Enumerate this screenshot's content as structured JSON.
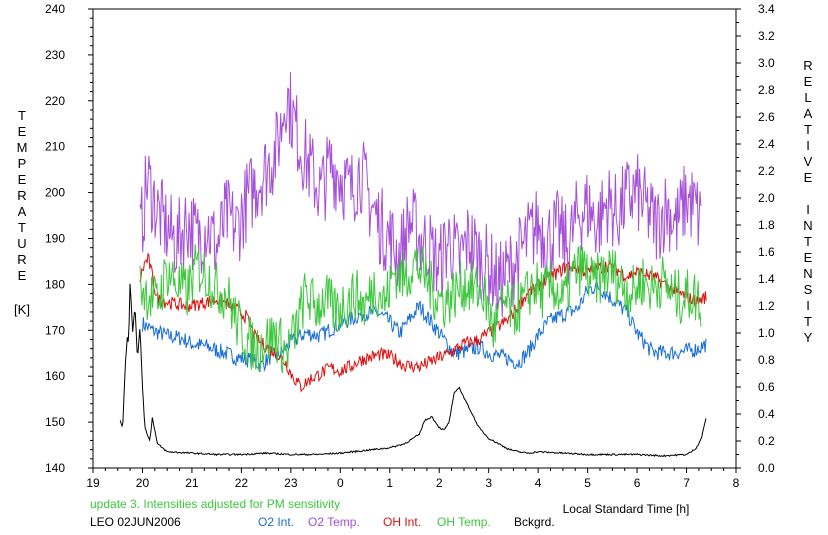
{
  "chart_data": {
    "type": "line",
    "xlabel": "Local Standard Time [h]",
    "ylabel_left_letters": [
      "T",
      "E",
      "M",
      "P",
      "E",
      "R",
      "A",
      "T",
      "U",
      "R",
      "E"
    ],
    "ylabel_left_unit": "[K]",
    "ylabel_right_letters": [
      "R",
      "E",
      "L",
      "A",
      "T",
      "I",
      "V",
      "E",
      "",
      "I",
      "N",
      "T",
      "E",
      "N",
      "S",
      "I",
      "T",
      "Y"
    ],
    "x_ticks": [
      "19",
      "20",
      "21",
      "22",
      "23",
      "0",
      "1",
      "2",
      "3",
      "4",
      "5",
      "6",
      "7",
      "8"
    ],
    "y_left_ticks": [
      "140",
      "150",
      "160",
      "170",
      "180",
      "190",
      "200",
      "210",
      "220",
      "230",
      "240"
    ],
    "y_right_ticks": [
      "0.0",
      "0.2",
      "0.4",
      "0.6",
      "0.8",
      "1.0",
      "1.2",
      "1.4",
      "1.6",
      "1.8",
      "2.0",
      "2.2",
      "2.4",
      "2.6",
      "2.8",
      "3.0",
      "3.2",
      "3.4"
    ],
    "xlim": [
      19,
      32
    ],
    "ylim_left": [
      140,
      240
    ],
    "ylim_right": [
      0,
      3.4
    ],
    "grid": false,
    "note": "update 3. Intensities adjusted for PM sensitivity",
    "station": "LEO 02JUN2006",
    "series": [
      {
        "name": "O2 Int.",
        "color": "#1a6fd6",
        "axis": "right",
        "x": [
          20.0,
          20.2,
          20.5,
          20.8,
          21.0,
          21.3,
          21.6,
          21.9,
          22.2,
          22.4,
          22.6,
          22.8,
          23.0,
          23.3,
          23.6,
          23.9,
          24.2,
          24.5,
          24.8,
          25.0,
          25.2,
          25.4,
          25.6,
          25.8,
          26.0,
          26.3,
          26.6,
          26.8,
          27.0,
          27.3,
          27.6,
          27.8,
          28.0,
          28.2,
          28.4,
          28.6,
          28.8,
          29.0,
          29.2,
          29.5,
          29.8,
          30.0,
          30.3,
          30.6,
          30.9,
          31.2,
          31.4
        ],
        "y": [
          1.07,
          1.02,
          0.98,
          0.96,
          0.92,
          0.9,
          0.86,
          0.82,
          0.8,
          0.76,
          0.83,
          0.85,
          0.93,
          1.0,
          0.98,
          1.05,
          1.1,
          1.15,
          1.14,
          1.08,
          1.0,
          1.1,
          1.2,
          1.1,
          1.0,
          0.85,
          0.87,
          0.9,
          0.85,
          0.82,
          0.78,
          0.86,
          0.98,
          1.08,
          1.12,
          1.15,
          1.18,
          1.32,
          1.35,
          1.25,
          1.15,
          1.0,
          0.86,
          0.85,
          0.86,
          0.88,
          0.92
        ]
      },
      {
        "name": "O2 Temp.",
        "color": "#a64fd8",
        "axis": "left",
        "x": [
          19.95,
          20.1,
          20.3,
          20.5,
          20.7,
          20.9,
          21.1,
          21.3,
          21.5,
          21.7,
          21.9,
          22.1,
          22.3,
          22.5,
          22.7,
          22.8,
          22.9,
          23.0,
          23.2,
          23.4,
          23.6,
          23.8,
          24.0,
          24.2,
          24.4,
          24.6,
          24.8,
          25.0,
          25.2,
          25.4,
          25.6,
          25.8,
          26.0,
          26.2,
          26.4,
          26.6,
          26.8,
          27.0,
          27.2,
          27.4,
          27.6,
          27.8,
          28.0,
          28.2,
          28.4,
          28.6,
          28.8,
          29.0,
          29.2,
          29.4,
          29.6,
          29.8,
          30.0,
          30.2,
          30.4,
          30.6,
          30.8,
          31.0,
          31.2,
          31.3
        ],
        "y": [
          190,
          203,
          196,
          192,
          189,
          194,
          190,
          193,
          188,
          195,
          192,
          198,
          202,
          205,
          209,
          214,
          222,
          218,
          210,
          205,
          200,
          206,
          204,
          200,
          205,
          198,
          193,
          190,
          186,
          194,
          190,
          188,
          184,
          190,
          185,
          190,
          186,
          184,
          180,
          183,
          186,
          190,
          193,
          190,
          192,
          188,
          195,
          197,
          193,
          198,
          195,
          199,
          200,
          196,
          193,
          197,
          193,
          199,
          196,
          193
        ]
      },
      {
        "name": "OH Int.",
        "color": "#dd1010",
        "axis": "right",
        "x": [
          19.95,
          20.05,
          20.12,
          20.3,
          20.6,
          20.9,
          21.2,
          21.5,
          21.8,
          22.1,
          22.3,
          22.5,
          22.7,
          22.9,
          23.0,
          23.2,
          23.4,
          23.6,
          23.8,
          24.0,
          24.2,
          24.4,
          24.6,
          24.8,
          25.0,
          25.3,
          25.6,
          25.9,
          26.2,
          26.5,
          26.8,
          27.0,
          27.2,
          27.4,
          27.6,
          27.8,
          28.0,
          28.2,
          28.4,
          28.6,
          28.8,
          29.0,
          29.2,
          29.4,
          29.6,
          29.8,
          30.0,
          30.2,
          30.4,
          30.6,
          30.8,
          31.0,
          31.2,
          31.4
        ],
        "y": [
          1.4,
          1.52,
          1.55,
          1.25,
          1.22,
          1.2,
          1.22,
          1.25,
          1.2,
          1.12,
          0.95,
          0.9,
          0.85,
          0.78,
          0.7,
          0.6,
          0.66,
          0.7,
          0.74,
          0.72,
          0.75,
          0.8,
          0.82,
          0.84,
          0.83,
          0.76,
          0.75,
          0.8,
          0.85,
          0.92,
          0.95,
          1.0,
          1.05,
          1.1,
          1.2,
          1.3,
          1.35,
          1.4,
          1.45,
          1.5,
          1.48,
          1.45,
          1.48,
          1.5,
          1.47,
          1.42,
          1.45,
          1.43,
          1.4,
          1.35,
          1.3,
          1.27,
          1.23,
          1.27
        ]
      },
      {
        "name": "OH Temp.",
        "color": "#3cc83c",
        "axis": "left",
        "x": [
          19.95,
          20.1,
          20.3,
          20.5,
          20.7,
          20.9,
          21.1,
          21.3,
          21.5,
          21.7,
          21.9,
          22.1,
          22.3,
          22.5,
          22.7,
          22.9,
          23.1,
          23.3,
          23.5,
          23.7,
          23.9,
          24.1,
          24.3,
          24.5,
          24.7,
          24.9,
          25.1,
          25.3,
          25.5,
          25.7,
          25.9,
          26.1,
          26.3,
          26.5,
          26.7,
          26.9,
          27.1,
          27.3,
          27.5,
          27.7,
          27.9,
          28.1,
          28.3,
          28.5,
          28.7,
          28.9,
          29.1,
          29.3,
          29.5,
          29.7,
          29.9,
          30.1,
          30.3,
          30.5,
          30.7,
          30.9,
          31.1,
          31.3
        ],
        "y": [
          180,
          178,
          176,
          183,
          180,
          178,
          184,
          182,
          179,
          178,
          172,
          168,
          166,
          168,
          169,
          165,
          170,
          178,
          175,
          177,
          174,
          176,
          178,
          175,
          180,
          176,
          183,
          181,
          185,
          182,
          178,
          176,
          178,
          180,
          179,
          178,
          170,
          176,
          174,
          176,
          180,
          178,
          180,
          176,
          182,
          184,
          180,
          182,
          183,
          180,
          178,
          181,
          179,
          181,
          178,
          177,
          178,
          176
        ]
      },
      {
        "name": "Bckgrd.",
        "color": "#000000",
        "axis": "right",
        "x": [
          19.55,
          19.6,
          19.65,
          19.7,
          19.72,
          19.75,
          19.8,
          19.85,
          19.9,
          19.95,
          20.0,
          20.05,
          20.1,
          20.15,
          20.2,
          20.3,
          20.5,
          21.0,
          21.5,
          22.0,
          22.5,
          23.0,
          23.5,
          24.0,
          24.5,
          25.0,
          25.3,
          25.6,
          25.7,
          25.85,
          26.0,
          26.1,
          26.2,
          26.3,
          26.4,
          26.5,
          26.6,
          26.8,
          27.0,
          27.2,
          27.4,
          27.6,
          27.8,
          28.0,
          28.5,
          29.0,
          29.5,
          30.0,
          30.5,
          31.0,
          31.1,
          31.2,
          31.3,
          31.35,
          31.4
        ],
        "y": [
          0.35,
          0.3,
          0.75,
          1.0,
          0.9,
          1.4,
          1.0,
          1.2,
          0.8,
          1.05,
          0.6,
          0.3,
          0.25,
          0.2,
          0.38,
          0.18,
          0.12,
          0.11,
          0.1,
          0.1,
          0.11,
          0.1,
          0.1,
          0.11,
          0.13,
          0.15,
          0.18,
          0.25,
          0.35,
          0.38,
          0.3,
          0.28,
          0.34,
          0.55,
          0.6,
          0.52,
          0.45,
          0.3,
          0.22,
          0.18,
          0.14,
          0.12,
          0.11,
          0.12,
          0.11,
          0.1,
          0.1,
          0.1,
          0.09,
          0.1,
          0.12,
          0.15,
          0.22,
          0.3,
          0.38
        ]
      }
    ]
  }
}
